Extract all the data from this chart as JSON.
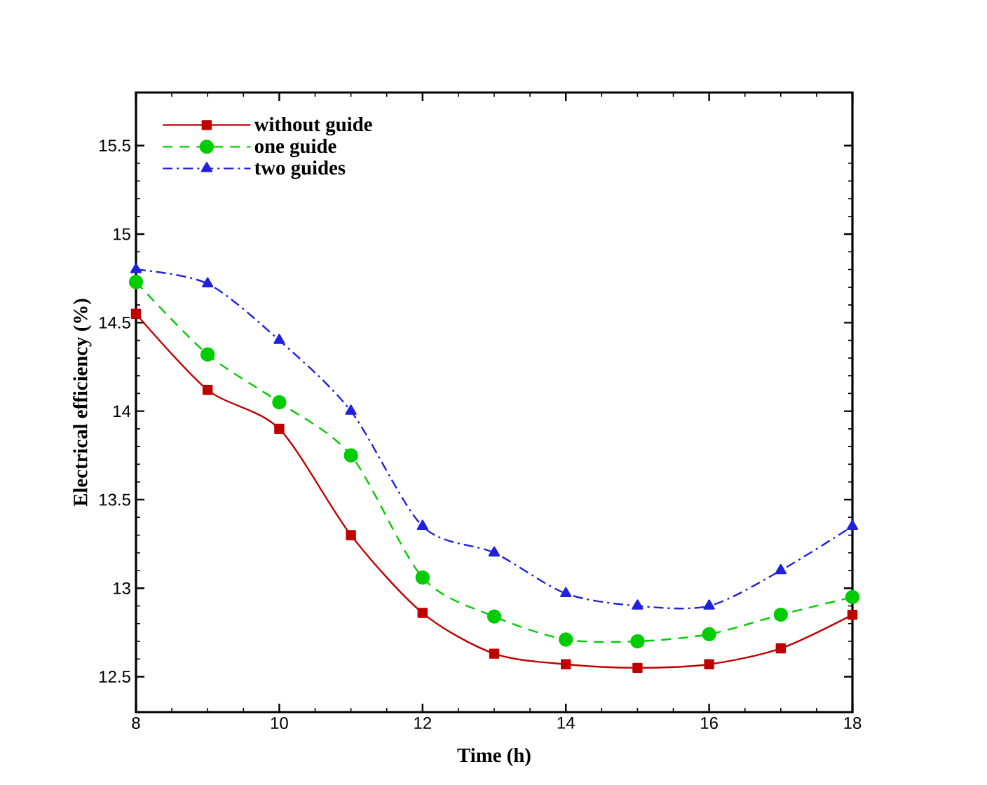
{
  "chart_data": {
    "type": "line",
    "xlabel": "Time (h)",
    "ylabel": "Electrical efficiency (%)",
    "x": [
      8,
      9,
      10,
      11,
      12,
      13,
      14,
      15,
      16,
      17,
      18
    ],
    "series": [
      {
        "name": "without guide",
        "color": "#c00000",
        "marker": "square",
        "line_style": "solid",
        "values": [
          14.55,
          14.12,
          13.9,
          13.3,
          12.86,
          12.63,
          12.57,
          12.55,
          12.57,
          12.66,
          12.85
        ]
      },
      {
        "name": "one guide",
        "color": "#00cc00",
        "marker": "circle",
        "line_style": "dashed",
        "values": [
          14.73,
          14.32,
          14.05,
          13.75,
          13.06,
          12.84,
          12.71,
          12.7,
          12.74,
          12.85,
          12.95
        ]
      },
      {
        "name": "two guides",
        "color": "#2020e0",
        "marker": "triangle",
        "line_style": "dashdot",
        "values": [
          14.8,
          14.72,
          14.4,
          14.0,
          13.35,
          13.2,
          12.97,
          12.9,
          12.9,
          13.1,
          13.35
        ]
      }
    ],
    "xlim": [
      8,
      18
    ],
    "ylim": [
      12.3,
      15.8
    ],
    "xticks": [
      8,
      10,
      12,
      14,
      16,
      18
    ],
    "yticks": [
      12.5,
      13,
      13.5,
      14,
      14.5,
      15,
      15.5
    ],
    "legend": "top left",
    "grid": false
  }
}
